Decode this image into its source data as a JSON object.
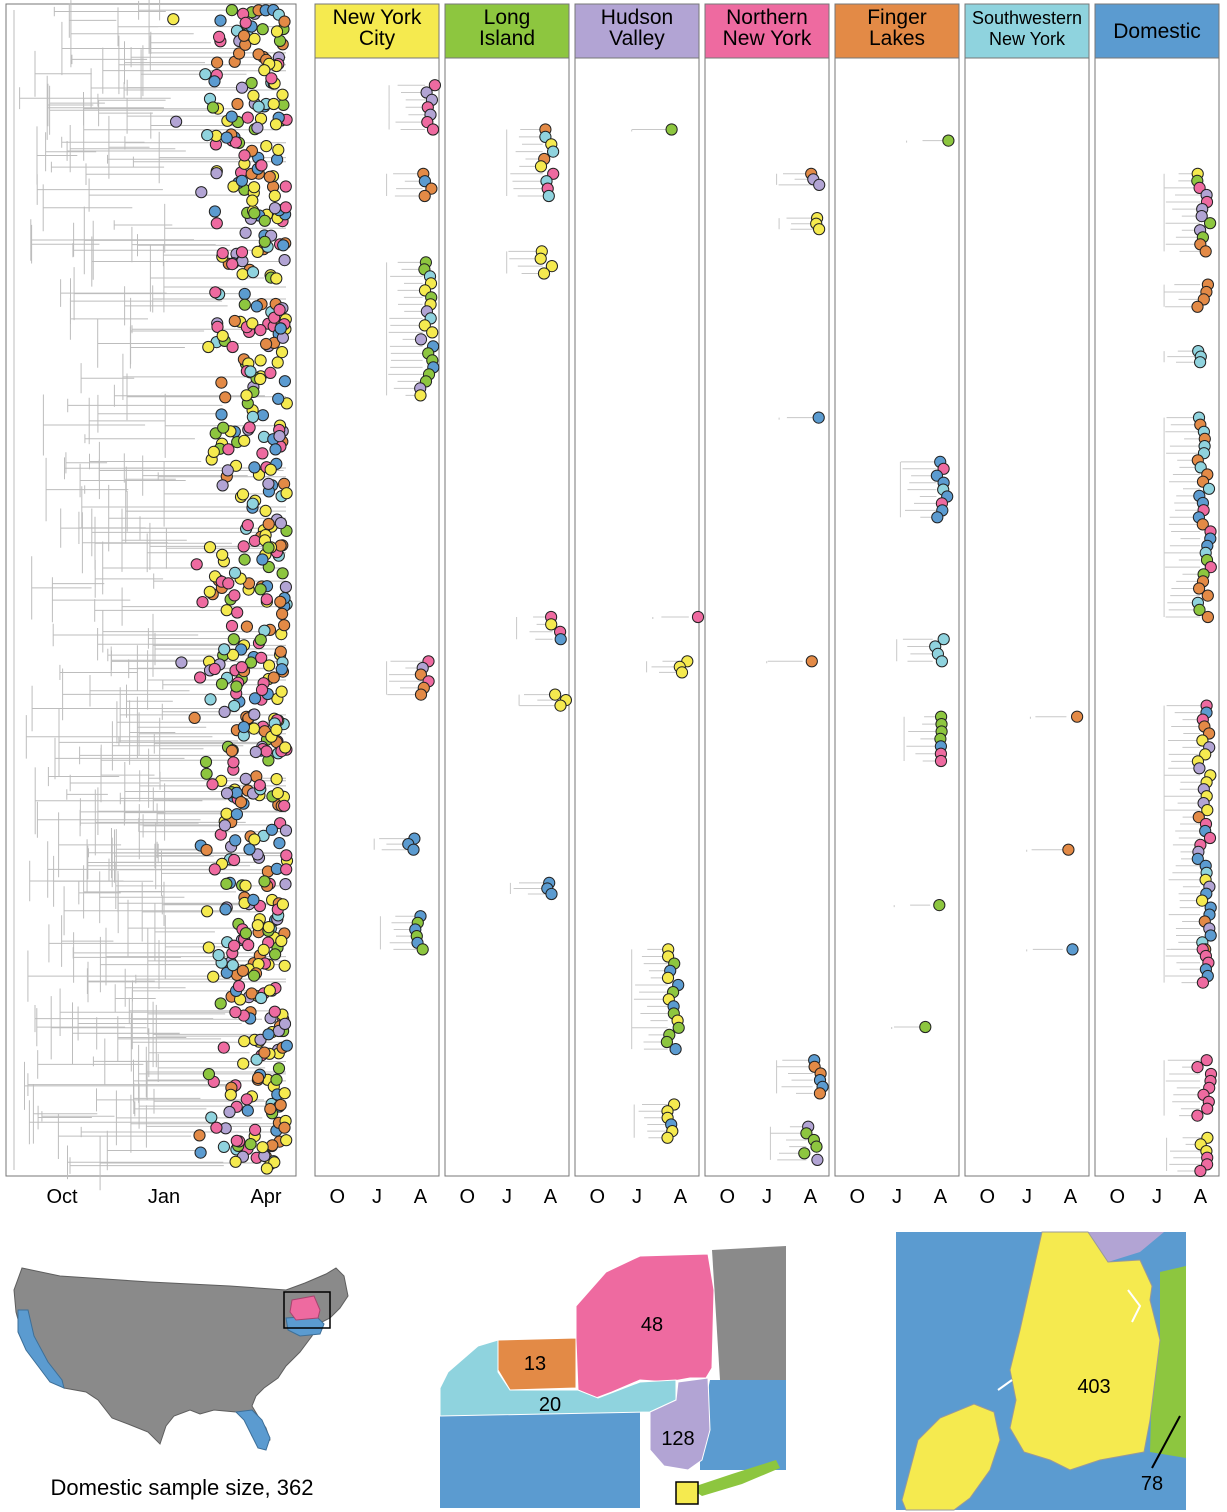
{
  "chart_data": {
    "type": "scatter",
    "colors": {
      "New York City": "#f5ea4f",
      "Long Island": "#8dc63f",
      "Hudson Valley": "#b2a4d4",
      "Northern New York": "#ee6aa0",
      "Finger Lakes": "#e38a46",
      "Southwestern New York": "#8fd3de",
      "Domestic": "#5b9bd0"
    },
    "main_tree": {
      "x_ticks": [
        "Oct",
        "Jan",
        "Apr"
      ],
      "x_tick_values": [
        0,
        3,
        6
      ]
    },
    "panels": [
      {
        "name": "New York City",
        "title_lines": [
          "New York",
          "City"
        ],
        "color": "#f5ea4f",
        "x_ticks": [
          "O",
          "J",
          "A"
        ],
        "clusters": [
          [
            0.02,
            0.06,
            0.92,
            [
              "#ee6aa0",
              "#f5ea4f",
              "#b2a4d4",
              "#5b9bd0"
            ]
          ],
          [
            0.1,
            0.12,
            0.9,
            [
              "#e38a46",
              "#5b9bd0"
            ]
          ],
          [
            0.18,
            0.3,
            0.9,
            [
              "#5b9bd0",
              "#8dc63f",
              "#8fd3de",
              "#b2a4d4",
              "#f5ea4f"
            ]
          ],
          [
            0.54,
            0.57,
            0.9,
            [
              "#b2a4d4",
              "#ee6aa0",
              "#e38a46"
            ]
          ],
          [
            0.7,
            0.71,
            0.8,
            [
              "#5b9bd0"
            ]
          ],
          [
            0.77,
            0.8,
            0.85,
            [
              "#5b9bd0",
              "#8dc63f"
            ]
          ]
        ]
      },
      {
        "name": "Long Island",
        "title_lines": [
          "Long",
          "Island"
        ],
        "color": "#8dc63f",
        "x_ticks": [
          "O",
          "J",
          "A"
        ],
        "clusters": [
          [
            0.06,
            0.12,
            0.82,
            [
              "#f5ea4f",
              "#8fd3de",
              "#ee6aa0",
              "#e38a46"
            ]
          ],
          [
            0.17,
            0.19,
            0.82,
            [
              "#f5ea4f"
            ]
          ],
          [
            0.5,
            0.52,
            0.9,
            [
              "#5b9bd0",
              "#ee6aa0",
              "#f5ea4f",
              "#e38a46"
            ]
          ],
          [
            0.57,
            0.58,
            0.92,
            [
              "#f5ea4f"
            ]
          ],
          [
            0.74,
            0.75,
            0.85,
            [
              "#5b9bd0"
            ]
          ]
        ]
      },
      {
        "name": "Hudson Valley",
        "title_lines": [
          "Hudson",
          "Valley"
        ],
        "color": "#b2a4d4",
        "x_ticks": [
          "O",
          "J",
          "A"
        ],
        "clusters": [
          [
            0.06,
            0.06,
            0.78,
            [
              "#8dc63f"
            ]
          ],
          [
            0.5,
            0.5,
            0.95,
            [
              "#ee6aa0"
            ]
          ],
          [
            0.54,
            0.55,
            0.9,
            [
              "#f5ea4f"
            ]
          ],
          [
            0.8,
            0.89,
            0.78,
            [
              "#f5ea4f",
              "#5b9bd0",
              "#8dc63f"
            ]
          ],
          [
            0.94,
            0.97,
            0.8,
            [
              "#f5ea4f",
              "#5b9bd0"
            ]
          ]
        ]
      },
      {
        "name": "Northern New York",
        "title_lines": [
          "Northern",
          "New York"
        ],
        "color": "#ee6aa0",
        "x_ticks": [
          "O",
          "J",
          "A"
        ],
        "clusters": [
          [
            0.1,
            0.11,
            0.9,
            [
              "#e38a46",
              "#b2a4d4"
            ]
          ],
          [
            0.14,
            0.15,
            0.92,
            [
              "#f5ea4f",
              "#5b9bd0"
            ]
          ],
          [
            0.32,
            0.32,
            0.92,
            [
              "#5b9bd0"
            ]
          ],
          [
            0.54,
            0.54,
            0.82,
            [
              "#e38a46"
            ]
          ],
          [
            0.9,
            0.93,
            0.9,
            [
              "#5b9bd0",
              "#e38a46"
            ]
          ],
          [
            0.96,
            0.99,
            0.85,
            [
              "#8dc63f",
              "#b2a4d4"
            ]
          ]
        ]
      },
      {
        "name": "Finger Lakes",
        "title_lines": [
          "Finger",
          "Lakes"
        ],
        "color": "#e38a46",
        "x_ticks": [
          "O",
          "J",
          "A"
        ],
        "clusters": [
          [
            0.07,
            0.07,
            0.9,
            [
              "#8dc63f"
            ]
          ],
          [
            0.36,
            0.41,
            0.85,
            [
              "#8fd3de",
              "#5b9bd0",
              "#ee6aa0"
            ]
          ],
          [
            0.52,
            0.54,
            0.82,
            [
              "#5b9bd0",
              "#8fd3de"
            ]
          ],
          [
            0.59,
            0.63,
            0.88,
            [
              "#8fd3de",
              "#5b9bd0",
              "#ee6aa0",
              "#8dc63f"
            ]
          ],
          [
            0.76,
            0.76,
            0.8,
            [
              "#8dc63f"
            ]
          ],
          [
            0.87,
            0.87,
            0.78,
            [
              "#8dc63f"
            ]
          ]
        ]
      },
      {
        "name": "Southwestern New York",
        "title_lines": [
          "Southwestern",
          "New York"
        ],
        "color": "#8fd3de",
        "x_ticks": [
          "O",
          "J",
          "A"
        ],
        "clusters": [
          [
            0.59,
            0.59,
            0.85,
            [
              "#e38a46"
            ]
          ],
          [
            0.71,
            0.71,
            0.82,
            [
              "#e38a46"
            ]
          ],
          [
            0.8,
            0.8,
            0.82,
            [
              "#5b9bd0"
            ]
          ]
        ]
      },
      {
        "name": "Domestic",
        "title_lines": [
          "Domestic"
        ],
        "color": "#5b9bd0",
        "x_ticks": [
          "O",
          "J",
          "A"
        ],
        "clusters": [
          [
            0.1,
            0.17,
            0.88,
            [
              "#ee6aa0",
              "#b2a4d4",
              "#e38a46",
              "#f5ea4f",
              "#8dc63f"
            ]
          ],
          [
            0.2,
            0.22,
            0.88,
            [
              "#e38a46"
            ]
          ],
          [
            0.26,
            0.27,
            0.88,
            [
              "#8fd3de"
            ]
          ],
          [
            0.32,
            0.5,
            0.88,
            [
              "#e38a46",
              "#5b9bd0",
              "#8fd3de",
              "#ee6aa0",
              "#8dc63f"
            ]
          ],
          [
            0.58,
            0.8,
            0.88,
            [
              "#e38a46",
              "#5b9bd0",
              "#8fd3de",
              "#f5ea4f",
              "#ee6aa0",
              "#b2a4d4"
            ]
          ],
          [
            0.8,
            0.83,
            0.88,
            [
              "#5b9bd0",
              "#ee6aa0"
            ]
          ],
          [
            0.9,
            0.95,
            0.88,
            [
              "#ee6aa0"
            ]
          ],
          [
            0.97,
            1.0,
            0.9,
            [
              "#ee6aa0",
              "#f5ea4f"
            ]
          ]
        ]
      }
    ],
    "maps": {
      "us_caption": "Domestic sample size, 362",
      "ny_region_counts": [
        {
          "region": "Northern New York",
          "value": "48",
          "color": "#ee6aa0"
        },
        {
          "region": "Finger Lakes",
          "value": "13",
          "color": "#e38a46"
        },
        {
          "region": "Southwestern New York",
          "value": "20",
          "color": "#8fd3de"
        },
        {
          "region": "Hudson Valley",
          "value": "128",
          "color": "#b2a4d4"
        }
      ],
      "nyc_counts": [
        {
          "region": "New York City",
          "value": "403",
          "color": "#f5ea4f"
        },
        {
          "region": "Long Island",
          "value": "78",
          "color": "#8dc63f"
        }
      ]
    }
  }
}
